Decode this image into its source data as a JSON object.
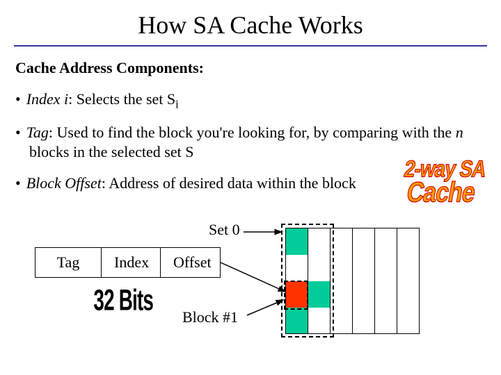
{
  "title": "How SA Cache Works",
  "subtitle": "Cache Address Components:",
  "bullets": {
    "b1_term": "Index i",
    "b1_rest": ": Selects the set S",
    "b1_sub": "i",
    "b2_term": "Tag",
    "b2_rest": ": Used to find the block you're looking for, by comparing with the ",
    "b2_n": "n",
    "b2_rest2": " blocks in the selected set S",
    "b3_term": "Block Offset",
    "b3_rest": ": Address of desired data within the block"
  },
  "diagram": {
    "set_label": "Set 0",
    "addr_fields": {
      "tag": "Tag",
      "index": "Index",
      "offset": "Offset"
    },
    "bits_label": "32 Bits",
    "block_label": "Block #1"
  },
  "wordart": {
    "line1": "2-way SA",
    "line2": "Cache"
  },
  "grid": {
    "cols": 6,
    "rows": 4,
    "colors": {
      "green": "#00cc99",
      "red": "#ff3300",
      "white": "#ffffff",
      "border": "#000000",
      "dashed": "#000000"
    },
    "cells": [
      [
        "green",
        "white",
        "white",
        "white",
        "white",
        "white"
      ],
      [
        "white",
        "white",
        "white",
        "white",
        "white",
        "white"
      ],
      [
        "red",
        "green",
        "white",
        "white",
        "white",
        "white"
      ],
      [
        "green",
        "white",
        "white",
        "white",
        "white",
        "white"
      ]
    ]
  },
  "colors": {
    "hr": "#3333aa",
    "wordart_fill": "#ff9900",
    "wordart_stroke": "#cc0000"
  }
}
